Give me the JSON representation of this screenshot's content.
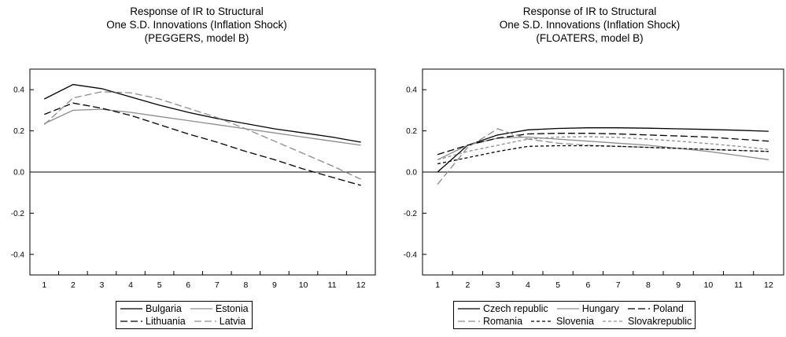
{
  "chart_data": [
    {
      "type": "line",
      "title_lines": [
        "Response of IR to Structural",
        "One S.D. Innovations (Inflation Shock)",
        "(PEGGERS, model B)"
      ],
      "x": [
        1,
        2,
        3,
        4,
        5,
        6,
        7,
        8,
        9,
        10,
        11,
        12
      ],
      "xticks": [
        "1",
        "2",
        "3",
        "4",
        "5",
        "6",
        "7",
        "8",
        "9",
        "10",
        "11",
        "12"
      ],
      "ylim": [
        -0.5,
        0.5
      ],
      "yticks": [
        "0.4",
        "0.2",
        "0.0",
        "-0.2",
        "-0.4"
      ],
      "ytick_values": [
        0.4,
        0.2,
        0.0,
        -0.2,
        -0.4
      ],
      "legend_rows": [
        [
          0,
          1
        ],
        [
          2,
          3
        ]
      ],
      "series": [
        {
          "name": "Bulgaria",
          "style": "solid",
          "color": "#000000",
          "values": [
            0.355,
            0.425,
            0.405,
            0.365,
            0.325,
            0.29,
            0.26,
            0.235,
            0.21,
            0.19,
            0.17,
            0.145
          ]
        },
        {
          "name": "Estonia",
          "style": "solid",
          "color": "#8c8c8c",
          "values": [
            0.235,
            0.3,
            0.305,
            0.29,
            0.27,
            0.25,
            0.23,
            0.21,
            0.19,
            0.17,
            0.15,
            0.13
          ]
        },
        {
          "name": "Lithuania",
          "style": "longdash",
          "color": "#000000",
          "values": [
            0.28,
            0.335,
            0.31,
            0.275,
            0.23,
            0.185,
            0.145,
            0.1,
            0.06,
            0.015,
            -0.025,
            -0.065
          ]
        },
        {
          "name": "Latvia",
          "style": "longdash",
          "color": "#8c8c8c",
          "values": [
            0.23,
            0.36,
            0.39,
            0.385,
            0.355,
            0.31,
            0.265,
            0.21,
            0.15,
            0.09,
            0.03,
            -0.035
          ]
        }
      ]
    },
    {
      "type": "line",
      "title_lines": [
        "Response of IR to Structural",
        "One S.D. Innovations (Inflation Shock)",
        "(FLOATERS, model B)"
      ],
      "x": [
        1,
        2,
        3,
        4,
        5,
        6,
        7,
        8,
        9,
        10,
        11,
        12
      ],
      "xticks": [
        "1",
        "2",
        "3",
        "4",
        "5",
        "6",
        "7",
        "8",
        "9",
        "10",
        "11",
        "12"
      ],
      "ylim": [
        -0.5,
        0.5
      ],
      "yticks": [
        "0.4",
        "0.2",
        "0.0",
        "-0.2",
        "-0.4"
      ],
      "ytick_values": [
        0.4,
        0.2,
        0.0,
        -0.2,
        -0.4
      ],
      "legend_rows": [
        [
          0,
          1,
          2
        ],
        [
          3,
          4,
          5
        ]
      ],
      "series": [
        {
          "name": "Czech republic",
          "style": "solid",
          "color": "#000000",
          "values": [
            0.0,
            0.13,
            0.18,
            0.205,
            0.212,
            0.215,
            0.215,
            0.213,
            0.21,
            0.207,
            0.203,
            0.198
          ]
        },
        {
          "name": "Hungary",
          "style": "solid",
          "color": "#8c8c8c",
          "values": [
            0.06,
            0.13,
            0.165,
            0.17,
            0.16,
            0.15,
            0.14,
            0.13,
            0.115,
            0.1,
            0.08,
            0.06
          ]
        },
        {
          "name": "Poland",
          "style": "longdash",
          "color": "#000000",
          "values": [
            0.085,
            0.13,
            0.165,
            0.185,
            0.188,
            0.188,
            0.185,
            0.18,
            0.175,
            0.17,
            0.16,
            0.15
          ]
        },
        {
          "name": "Romania",
          "style": "longdash",
          "color": "#8c8c8c",
          "values": [
            -0.06,
            0.12,
            0.21,
            0.16,
            0.14,
            0.13,
            0.125,
            0.12,
            0.115,
            0.11,
            0.105,
            0.1
          ]
        },
        {
          "name": "Slovenia",
          "style": "shortdash",
          "color": "#000000",
          "values": [
            0.04,
            0.07,
            0.1,
            0.125,
            0.128,
            0.128,
            0.125,
            0.12,
            0.115,
            0.11,
            0.105,
            0.1
          ]
        },
        {
          "name": "Slovakrepublic",
          "style": "shortdash",
          "color": "#8c8c8c",
          "values": [
            0.06,
            0.1,
            0.13,
            0.16,
            0.17,
            0.172,
            0.168,
            0.16,
            0.15,
            0.138,
            0.125,
            0.11
          ]
        }
      ]
    }
  ]
}
